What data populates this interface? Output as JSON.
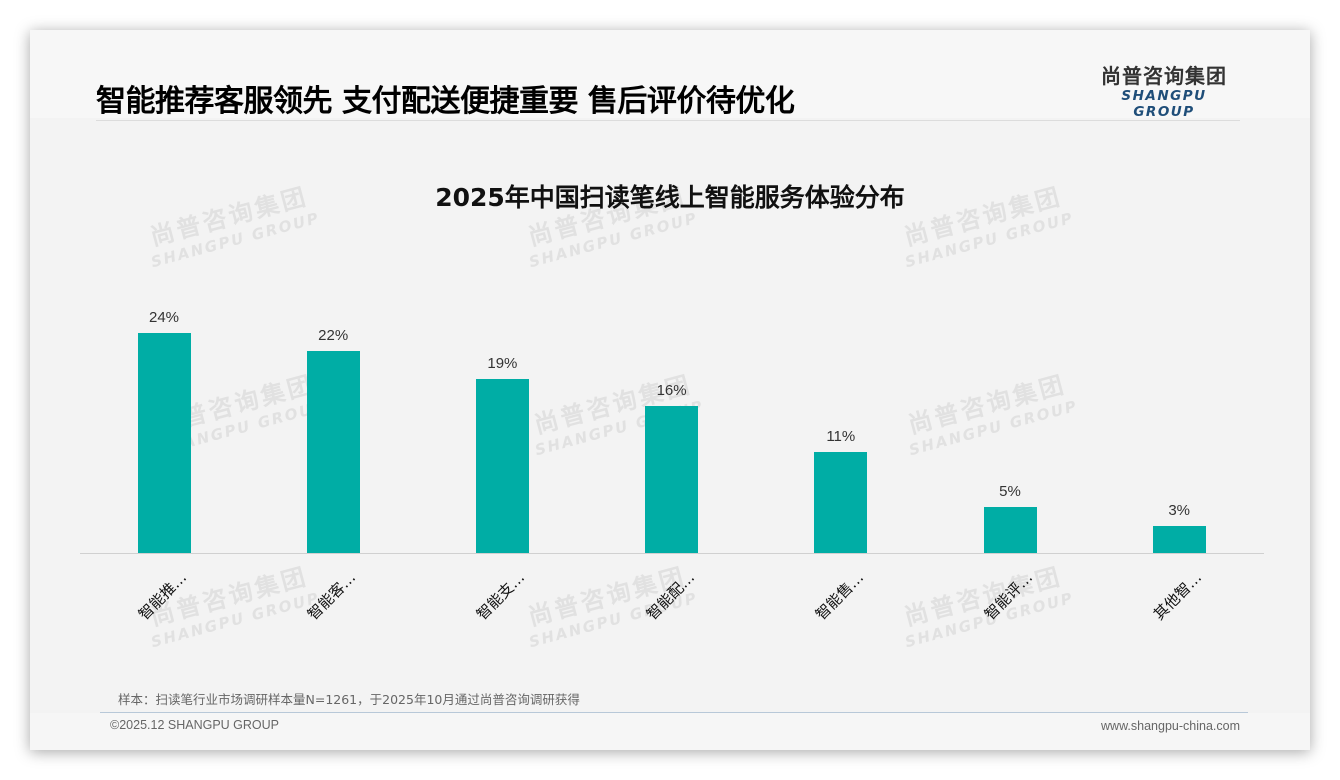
{
  "header": {
    "headline": "智能推荐客服领先 支付配送便捷重要 售后评价待优化",
    "logo_cn": "尚普咨询集团",
    "logo_en": "SHANGPU GROUP"
  },
  "watermark": {
    "cn": "尚普咨询集团",
    "en": "SHANGPU GROUP"
  },
  "chart": {
    "title": "2025年中国扫读笔线上智能服务体验分布",
    "bars": [
      {
        "label": "智能推…",
        "value_label": "24%"
      },
      {
        "label": "智能客…",
        "value_label": "22%"
      },
      {
        "label": "智能支…",
        "value_label": "19%"
      },
      {
        "label": "智能配…",
        "value_label": "16%"
      },
      {
        "label": "智能售…",
        "value_label": "11%"
      },
      {
        "label": "智能评…",
        "value_label": "5%"
      },
      {
        "label": "其他智…",
        "value_label": "3%"
      }
    ],
    "bar_color": "#00ada5"
  },
  "chart_data": {
    "type": "bar",
    "title": "2025年中国扫读笔线上智能服务体验分布",
    "categories": [
      "智能推…",
      "智能客…",
      "智能支…",
      "智能配…",
      "智能售…",
      "智能评…",
      "其他智…"
    ],
    "values": [
      24,
      22,
      19,
      16,
      11,
      5,
      3
    ],
    "value_unit": "%",
    "xlabel": "",
    "ylabel": "",
    "ylim": [
      0,
      24
    ],
    "grid": false,
    "legend": null,
    "data_labels": true,
    "colors": [
      "#00ada5"
    ]
  },
  "footer": {
    "sample_note": "样本：扫读笔行业市场调研样本量N=1261，于2025年10月通过尚普咨询调研获得",
    "copyright": "©2025.12 SHANGPU GROUP",
    "website": "www.shangpu-china.com"
  }
}
